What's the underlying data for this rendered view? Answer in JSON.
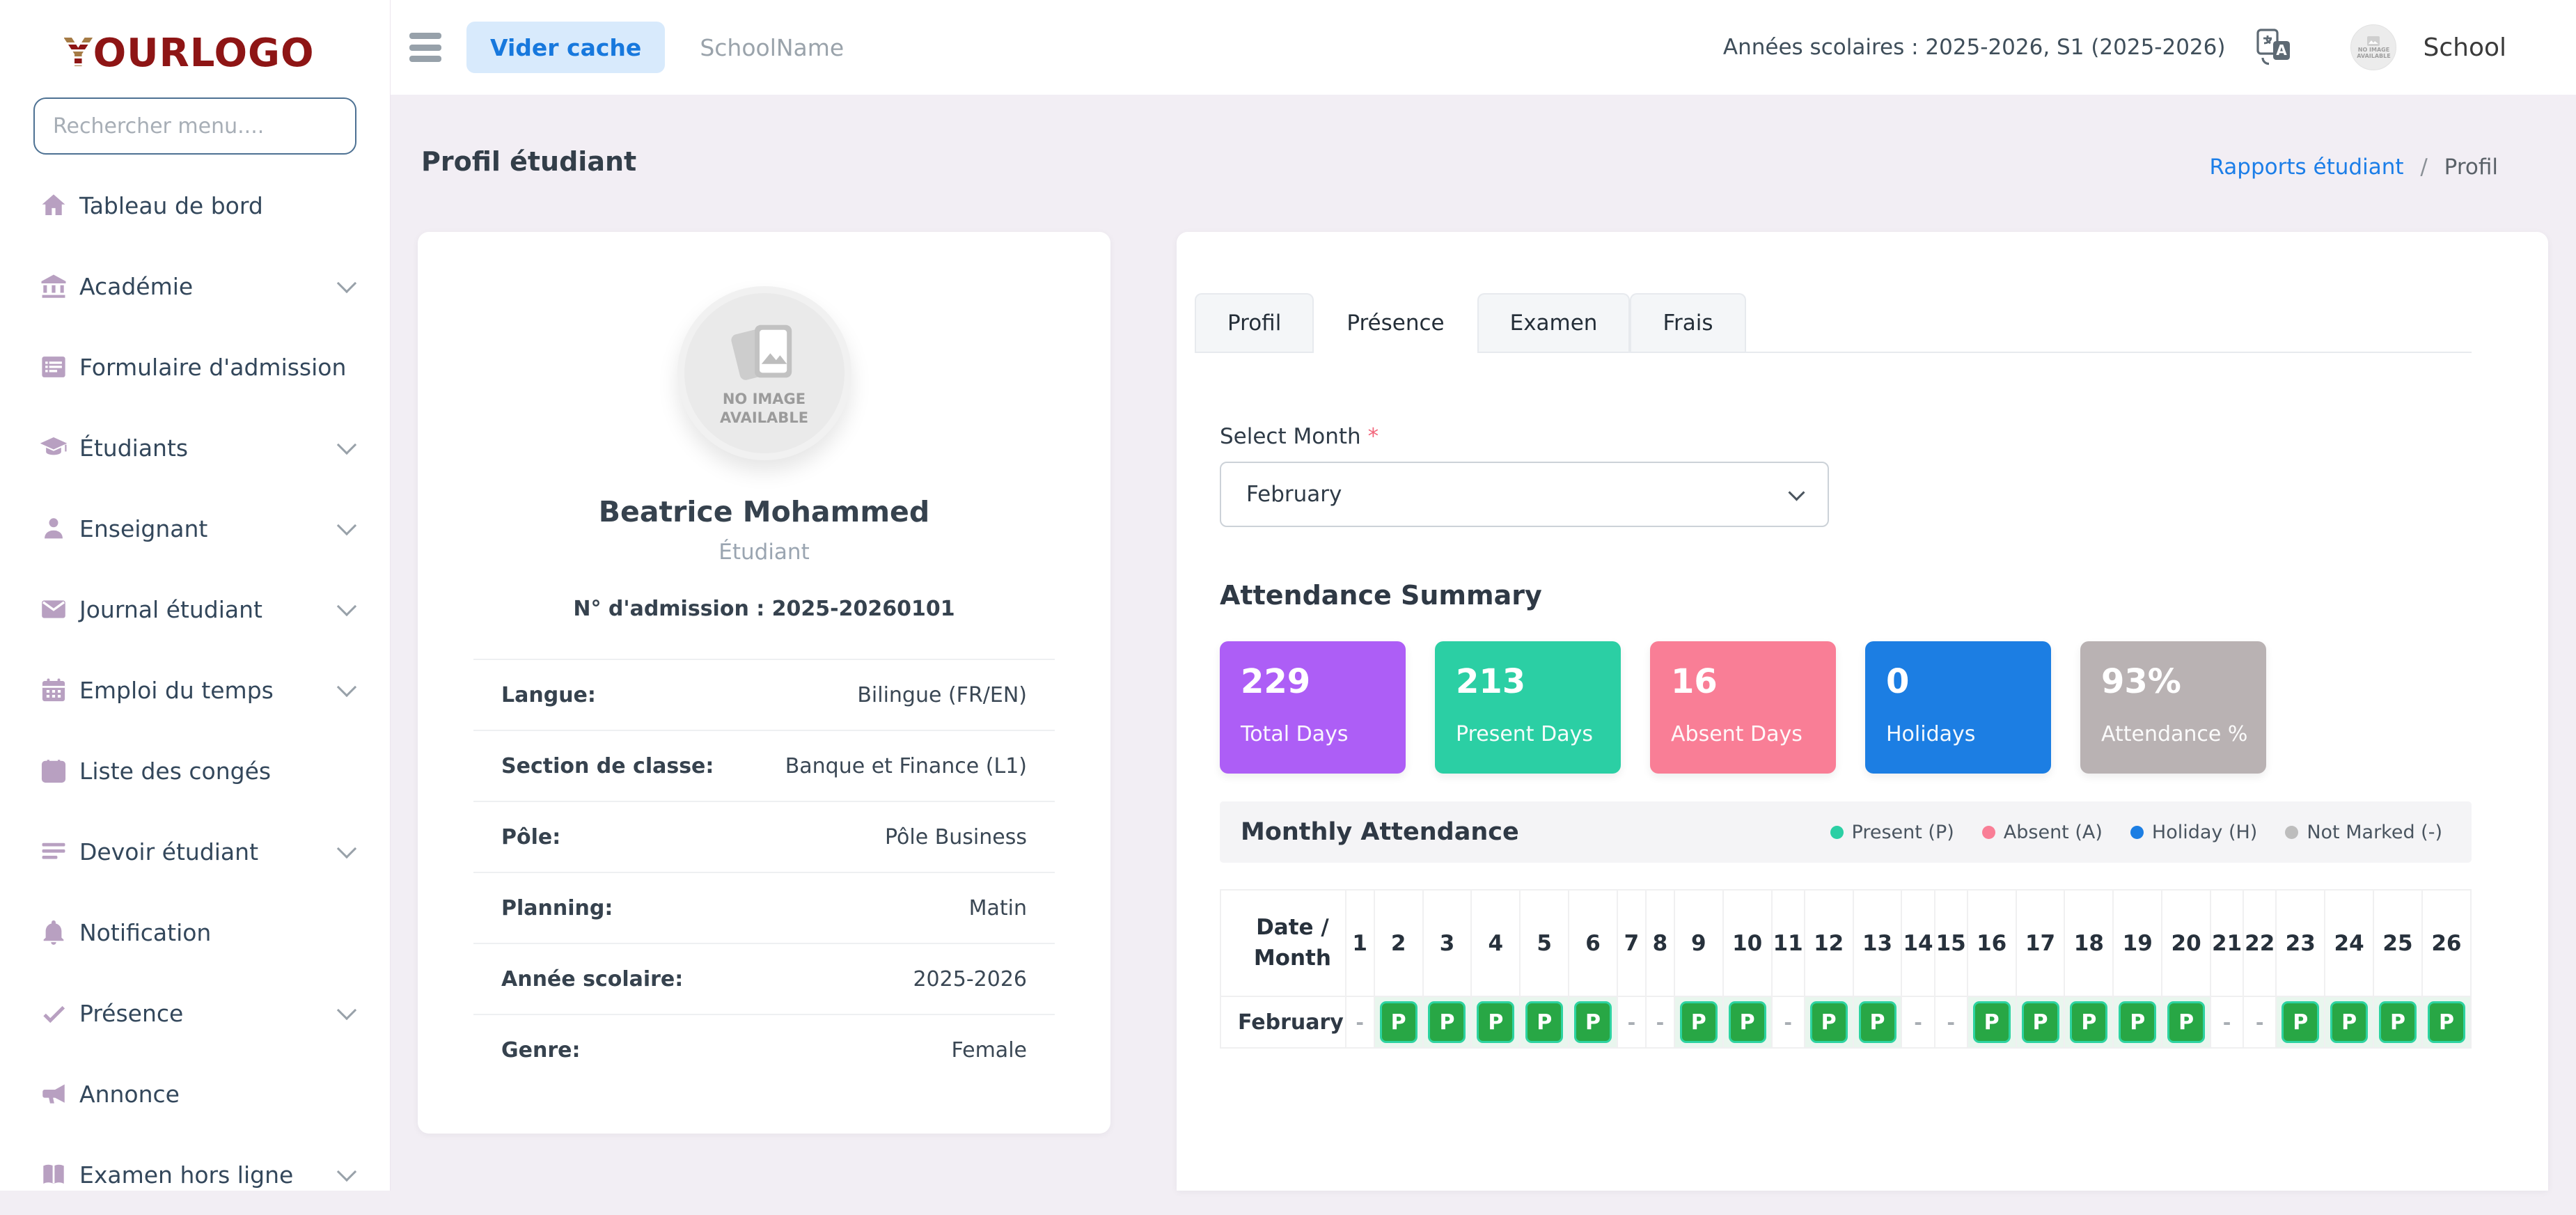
{
  "brand": {
    "logo_y": "Y",
    "logo_text": "OURLOGO"
  },
  "sidebar": {
    "search_placeholder": "Rechercher menu....",
    "items": [
      {
        "label": "Tableau de bord",
        "icon": "home-icon",
        "chevron": false
      },
      {
        "label": "Académie",
        "icon": "academy-icon",
        "chevron": true
      },
      {
        "label": "Formulaire d'admission",
        "icon": "admission-form-icon",
        "chevron": false
      },
      {
        "label": "Étudiants",
        "icon": "students-icon",
        "chevron": true
      },
      {
        "label": "Enseignant",
        "icon": "teacher-icon",
        "chevron": true
      },
      {
        "label": "Journal étudiant",
        "icon": "journal-icon",
        "chevron": true
      },
      {
        "label": "Emploi du temps",
        "icon": "timetable-icon",
        "chevron": true
      },
      {
        "label": "Liste des congés",
        "icon": "leave-list-icon",
        "chevron": false
      },
      {
        "label": "Devoir étudiant",
        "icon": "homework-icon",
        "chevron": true
      },
      {
        "label": "Notification",
        "icon": "bell-icon",
        "chevron": false
      },
      {
        "label": "Présence",
        "icon": "attendance-icon",
        "chevron": true
      },
      {
        "label": "Annonce",
        "icon": "announcement-icon",
        "chevron": false
      },
      {
        "label": "Examen hors ligne",
        "icon": "offline-exam-icon",
        "chevron": true
      }
    ]
  },
  "topbar": {
    "clear_cache_label": "Vider cache",
    "school_name": "SchoolName",
    "session_label": "Années scolaires : 2025-2026, S1 (2025-2026)",
    "avatar_line1": "NO IMAGE",
    "avatar_line2": "AVAILABLE",
    "profile_label": "School"
  },
  "page": {
    "title": "Profil étudiant",
    "breadcrumb": {
      "link": "Rapports étudiant",
      "separator": "/",
      "current": "Profil"
    }
  },
  "student_card": {
    "no_image_line1": "NO IMAGE",
    "no_image_line2": "AVAILABLE",
    "name": "Beatrice Mohammed",
    "role": "Étudiant",
    "admission": "N° d'admission : 2025-20260101",
    "details": [
      {
        "label": "Langue:",
        "value": "Bilingue (FR/EN)"
      },
      {
        "label": "Section de classe:",
        "value": "Banque et Finance (L1)"
      },
      {
        "label": "Pôle:",
        "value": "Pôle Business"
      },
      {
        "label": "Planning:",
        "value": "Matin"
      },
      {
        "label": "Année scolaire:",
        "value": "2025-2026"
      },
      {
        "label": "Genre:",
        "value": "Female"
      }
    ]
  },
  "tabs": [
    {
      "label": "Profil",
      "active": false
    },
    {
      "label": "Présence",
      "active": true
    },
    {
      "label": "Examen",
      "active": false
    },
    {
      "label": "Frais",
      "active": false
    }
  ],
  "presence": {
    "select_month_label": "Select Month",
    "required_mark": "*",
    "selected_month": "February",
    "summary_title": "Attendance Summary",
    "summary_cards": [
      {
        "value": "229",
        "label": "Total Days",
        "color": "#ad5ef6"
      },
      {
        "value": "213",
        "label": "Present Days",
        "color": "#2bcfa4"
      },
      {
        "value": "16",
        "label": "Absent Days",
        "color": "#f97e96"
      },
      {
        "value": "0",
        "label": "Holidays",
        "color": "#1c7ee3"
      },
      {
        "value": "93%",
        "label": "Attendance %",
        "color": "#b9b2b3"
      }
    ],
    "monthly_title": "Monthly Attendance",
    "legend": [
      {
        "label": "Present (P)",
        "color": "#2bcfa4"
      },
      {
        "label": "Absent (A)",
        "color": "#f97e96"
      },
      {
        "label": "Holiday (H)",
        "color": "#1c7ee3"
      },
      {
        "label": "Not Marked (-)",
        "color": "#bdbdbd"
      }
    ],
    "table": {
      "corner_line1": "Date /",
      "corner_line2": "Month",
      "month_label": "February",
      "days": [
        1,
        2,
        3,
        4,
        5,
        6,
        7,
        8,
        9,
        10,
        11,
        12,
        13,
        14,
        15,
        16,
        17,
        18,
        19,
        20,
        21,
        22,
        23,
        24,
        25,
        26
      ],
      "marks": [
        "-",
        "P",
        "P",
        "P",
        "P",
        "P",
        "-",
        "-",
        "P",
        "P",
        "-",
        "P",
        "P",
        "-",
        "-",
        "P",
        "P",
        "P",
        "P",
        "P",
        "-",
        "-",
        "P",
        "P",
        "P",
        "P"
      ]
    }
  }
}
